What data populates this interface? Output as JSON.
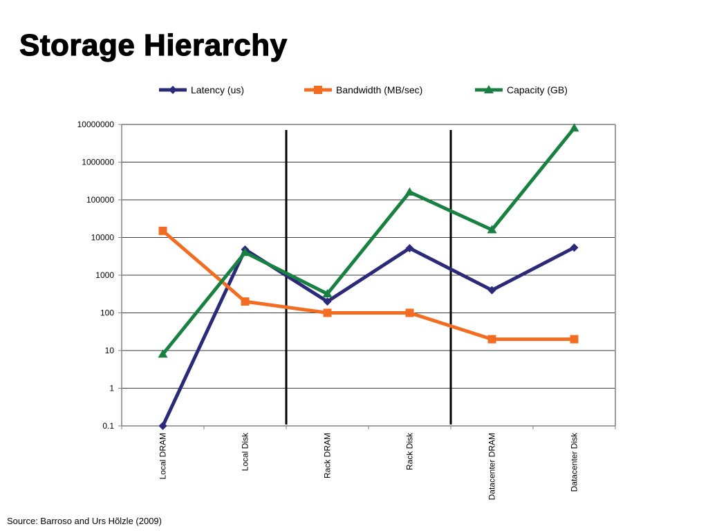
{
  "slide": {
    "title": "Storage Hierarchy",
    "source": "Source: Barroso and Urs Hõlzle (2009)"
  },
  "chart_data": {
    "type": "line",
    "yscale": "log",
    "ylim": [
      0.1,
      10000000
    ],
    "y_ticks": [
      "0.1",
      "1",
      "10",
      "100",
      "1000",
      "10000",
      "100000",
      "1000000",
      "10000000"
    ],
    "categories": [
      "Local DRAM",
      "Local Disk",
      "Rack DRAM",
      "Rack Disk",
      "Datacenter DRAM",
      "Datacenter Disk"
    ],
    "grid": true,
    "legend_position": "top",
    "separators_after_categories": [
      "Local Disk",
      "Rack Disk"
    ],
    "series": [
      {
        "name": "Latency (us)",
        "color": "#2b2a78",
        "marker": "diamond",
        "values": [
          0.1,
          4800,
          200,
          5200,
          400,
          5400
        ]
      },
      {
        "name": "Bandwidth (MB/sec)",
        "color": "#f26d21",
        "marker": "square",
        "values": [
          15000,
          200,
          100,
          100,
          20,
          20
        ]
      },
      {
        "name": "Capacity (GB)",
        "color": "#188040",
        "marker": "triangle",
        "values": [
          8,
          4000,
          320,
          160000,
          16000,
          8000000
        ]
      }
    ]
  }
}
